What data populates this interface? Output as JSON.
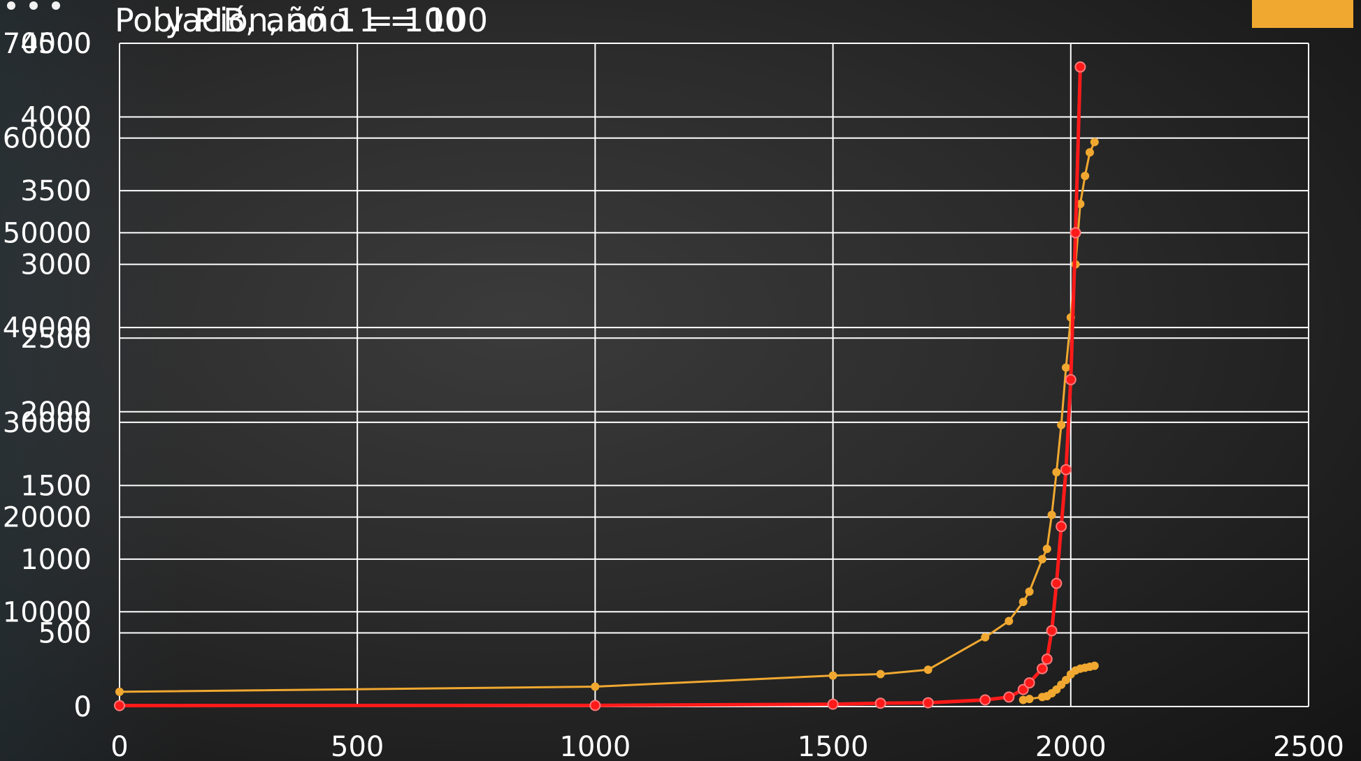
{
  "window": {
    "accent_color": "#f0a830"
  },
  "chart_data": {
    "type": "line",
    "title_main": "Población, año 1 = 100",
    "title_overlay": "y PIB, año 1 = 100",
    "x_ticks": [
      "0",
      "500",
      "1000",
      "1500",
      "2000",
      "2500"
    ],
    "left_axis_ticks": [
      "0",
      "500",
      "1000",
      "1500",
      "2000",
      "2500",
      "3000",
      "3500",
      "4000",
      "4500"
    ],
    "left2_axis_ticks": [
      "0",
      "10000",
      "20000",
      "30000",
      "40000",
      "50000",
      "60000",
      "70000"
    ],
    "xlim": [
      0,
      2500
    ],
    "grid": true,
    "series": [
      {
        "color": "#f0a830",
        "axis": "left",
        "ylim": [
          0,
          4500
        ],
        "x": [
          0,
          1000,
          1500,
          1600,
          1700,
          1820,
          1870,
          1900,
          1913,
          1940,
          1950,
          1960,
          1970,
          1980,
          1990,
          2000,
          2010,
          2020,
          2030,
          2040,
          2050
        ],
        "y": [
          100,
          135,
          210,
          220,
          250,
          470,
          580,
          710,
          780,
          1000,
          1070,
          1300,
          1590,
          1910,
          2300,
          2640,
          3000,
          3410,
          3600,
          3760,
          3830
        ]
      },
      {
        "color": "#ff1a1a",
        "axis": "left2",
        "ylim": [
          0,
          70000
        ],
        "x": [
          0,
          1000,
          1500,
          1600,
          1700,
          1820,
          1870,
          1900,
          1913,
          1940,
          1950,
          1960,
          1970,
          1980,
          1990,
          2000,
          2010,
          2020
        ],
        "y": [
          100,
          120,
          250,
          350,
          400,
          700,
          1000,
          1800,
          2500,
          4000,
          5000,
          8000,
          13000,
          19000,
          25000,
          34500,
          50000,
          67500
        ]
      },
      {
        "color": "#f0a830",
        "axis": "left2",
        "ylim": [
          0,
          70000
        ],
        "x": [
          1900,
          1913,
          1940,
          1950,
          1960,
          1970,
          1980,
          1990,
          2000,
          2010,
          2020,
          2030,
          2040,
          2050
        ],
        "y": [
          700,
          800,
          1000,
          1100,
          1400,
          1800,
          2300,
          2800,
          3400,
          3800,
          4000,
          4100,
          4200,
          4300
        ]
      }
    ]
  }
}
